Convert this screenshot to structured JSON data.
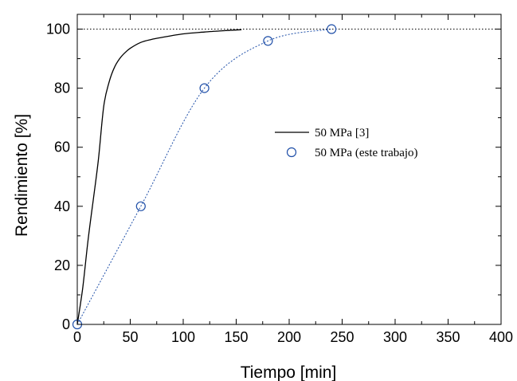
{
  "chart_data": {
    "type": "line",
    "title": "",
    "xlabel": "Tiempo [min]",
    "ylabel": "Rendimiento [%]",
    "xlim": [
      0,
      400
    ],
    "ylim": [
      0,
      105
    ],
    "x_ticks": [
      "0",
      "50",
      "100",
      "150",
      "200",
      "250",
      "300",
      "350",
      "400"
    ],
    "y_ticks": [
      "0",
      "20",
      "40",
      "60",
      "80",
      "100"
    ],
    "reference_line": {
      "y": 100,
      "style": "dotted"
    },
    "legend_position": "center-right",
    "series": [
      {
        "name": "50 MPa [3]",
        "style": "solid-line",
        "color": "#000000",
        "x": [
          0,
          5,
          10,
          15,
          20,
          25,
          30,
          35,
          40,
          45,
          50,
          60,
          70,
          80,
          100,
          120,
          140,
          155
        ],
        "y": [
          0,
          12,
          28,
          42,
          56,
          74,
          82,
          87,
          90,
          92,
          93.5,
          95.5,
          96.5,
          97.2,
          98.4,
          99.0,
          99.5,
          99.8
        ]
      },
      {
        "name": "50 MPa (este trabajo)",
        "style": "dotted-line-with-circle-markers",
        "color": "#1f4fa8",
        "x": [
          0,
          60,
          120,
          180,
          240
        ],
        "y": [
          0,
          40,
          80,
          96,
          100
        ]
      }
    ]
  }
}
